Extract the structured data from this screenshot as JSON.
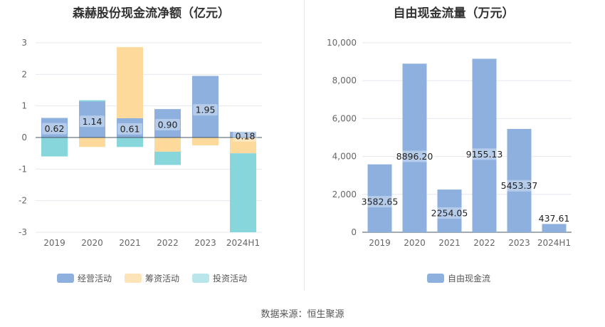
{
  "source_label": "数据来源：恒生聚源",
  "colors": {
    "operating": "#8eb0df",
    "financing": "#fdd99b",
    "investing": "#86d6dc",
    "fcf": "#8eb0df"
  },
  "chart_data": [
    {
      "type": "bar",
      "stacked": true,
      "title": "森赫股份现金流净额（亿元）",
      "categories": [
        "2019",
        "2020",
        "2021",
        "2022",
        "2023",
        "2024H1"
      ],
      "ylim": [
        -3,
        3
      ],
      "yticks": [
        "3",
        "2",
        "1",
        "0",
        "-1",
        "-2",
        "-3"
      ],
      "grid": true,
      "legend_position": "bottom",
      "series": [
        {
          "name": "经营活动",
          "values": [
            0.62,
            1.14,
            0.61,
            0.9,
            1.95,
            0.18
          ],
          "data_labels": [
            "0.62",
            "1.14",
            "0.61",
            "0.90",
            "1.95",
            "0.18"
          ]
        },
        {
          "name": "筹资活动",
          "values": [
            0,
            -0.3,
            2.25,
            -0.45,
            -0.25,
            -0.5
          ]
        },
        {
          "name": "投资活动",
          "values": [
            -0.6,
            0.04,
            -0.3,
            -0.42,
            0,
            -2.5
          ]
        }
      ]
    },
    {
      "type": "bar",
      "title": "自由现金流量（万元）",
      "categories": [
        "2019",
        "2020",
        "2021",
        "2022",
        "2023",
        "2024H1"
      ],
      "ylim": [
        0,
        10000
      ],
      "yticks": [
        "10,000",
        "8,000",
        "6,000",
        "4,000",
        "2,000",
        "0"
      ],
      "grid": true,
      "legend_position": "bottom",
      "series": [
        {
          "name": "自由现金流",
          "values": [
            3582.65,
            8896.2,
            2254.05,
            9155.13,
            5453.37,
            437.61
          ],
          "data_labels": [
            "3582.65",
            "8896.20",
            "2254.05",
            "9155.13",
            "5453.37",
            "437.61"
          ]
        }
      ]
    }
  ]
}
